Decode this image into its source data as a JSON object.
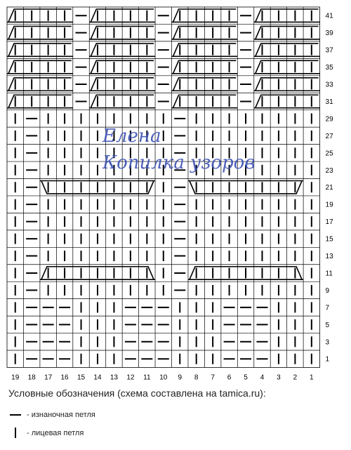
{
  "chart": {
    "row_labels": [
      "41",
      "39",
      "37",
      "35",
      "33",
      "31",
      "29",
      "27",
      "25",
      "23",
      "21",
      "19",
      "17",
      "15",
      "13",
      "11",
      "9",
      "7",
      "5",
      "3",
      "1"
    ],
    "col_labels": [
      "19",
      "18",
      "17",
      "16",
      "15",
      "14",
      "13",
      "12",
      "11",
      "10",
      "9",
      "8",
      "7",
      "6",
      "5",
      "4",
      "3",
      "2",
      "1"
    ],
    "watermark_line1": "Елена",
    "watermark_line2": "Копилка узоров",
    "watermark_color": "#3c52b4"
  },
  "legend": {
    "title": "Условные обозначения (схема составлена на tamica.ru):",
    "purl_label": "- изнаночная петля",
    "knit_label": "- лицевая петля"
  }
}
